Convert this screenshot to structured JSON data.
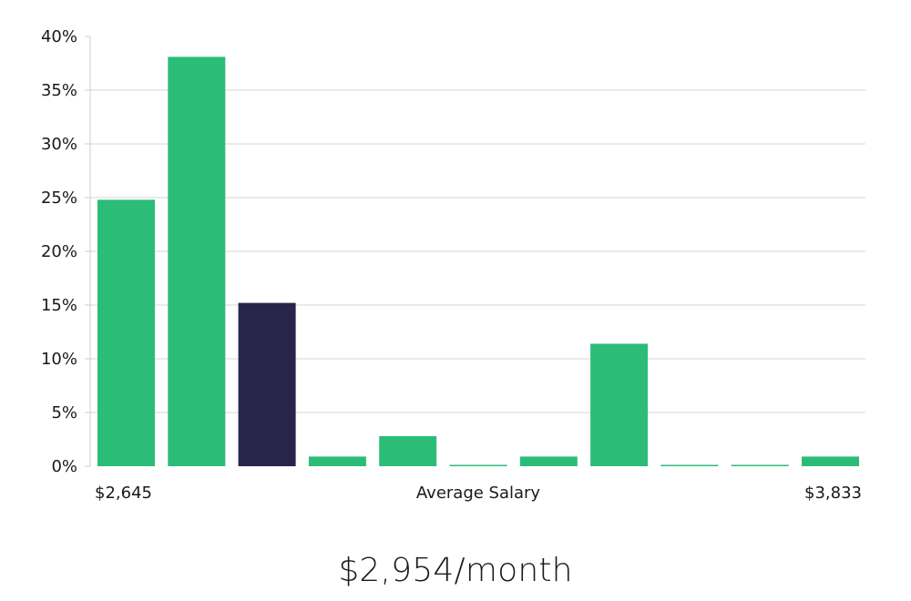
{
  "headline": "$2,954/month",
  "colors": {
    "bar": "#2bbd78",
    "highlight": "#28244a",
    "grid": "#e3e3e3",
    "axis": "#cccccc"
  },
  "chart_data": {
    "type": "bar",
    "values": [
      24.8,
      38.1,
      15.2,
      0.9,
      2.8,
      0.1,
      0.9,
      11.4,
      0.1,
      0.1,
      0.9
    ],
    "highlight_index": 2,
    "ylim": [
      0,
      40
    ],
    "y_ticks": [
      "0%",
      "5%",
      "10%",
      "15%",
      "20%",
      "25%",
      "30%",
      "35%",
      "40%"
    ],
    "x_min_label": "$2,645",
    "x_max_label": "$3,833",
    "xlabel": "Average Salary",
    "grid": true
  }
}
